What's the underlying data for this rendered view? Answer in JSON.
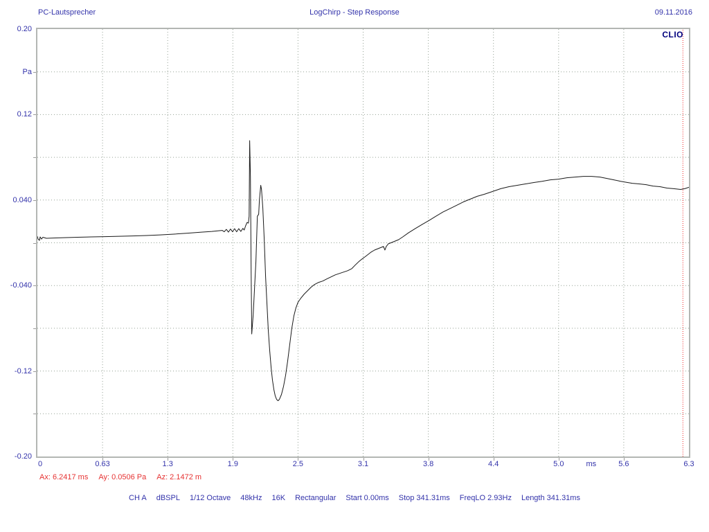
{
  "header": {
    "note": "PC-Lautsprecher",
    "title": "LogChirp - Step Response",
    "date": "09.11.2016"
  },
  "brand": "CLIO",
  "cursor_readout": {
    "ax": "Ax: 6.2417 ms",
    "ay": "Ay: 0.0506 Pa",
    "az": "Az: 2.1472 m"
  },
  "settings_bar": [
    "CH A",
    "dBSPL",
    "1/12 Octave",
    "48kHz",
    "16K",
    "Rectangular",
    "Start 0.00ms",
    "Stop 341.31ms",
    "FreqLO 2.93Hz",
    "Length 341.31ms"
  ],
  "colors": {
    "label_blue": "#3232aa",
    "readout_red": "#e63232",
    "brand_navy": "#00007d",
    "grid": "#93a093",
    "curve": "#181818",
    "frame": "#b3b6b3"
  },
  "chart_data": {
    "type": "line",
    "title": "LogChirp - Step Response",
    "x_unit": "ms",
    "y_unit": "Pa",
    "xlim": [
      0,
      6.3
    ],
    "ylim": [
      -0.2,
      0.2
    ],
    "grid": true,
    "cursor_x_ms": 6.2417,
    "cursor_y_pa": 0.0506,
    "x_ticks": [
      {
        "t": 0.0,
        "label": "0"
      },
      {
        "t": 0.63,
        "label": "0.63"
      },
      {
        "t": 1.26,
        "label": "1.3"
      },
      {
        "t": 1.89,
        "label": "1.9"
      },
      {
        "t": 2.52,
        "label": "2.5"
      },
      {
        "t": 3.15,
        "label": "3.1"
      },
      {
        "t": 3.78,
        "label": "3.8"
      },
      {
        "t": 4.41,
        "label": "4.4"
      },
      {
        "t": 5.04,
        "label": "5.0"
      },
      {
        "t": 5.355,
        "label": "ms",
        "unit": true
      },
      {
        "t": 5.67,
        "label": "5.6"
      },
      {
        "t": 6.3,
        "label": "6.3"
      }
    ],
    "y_ticks": [
      {
        "v": 0.2,
        "label": "0.20"
      },
      {
        "v": 0.16,
        "label": "Pa",
        "unit": true
      },
      {
        "v": 0.12,
        "label": "0.12"
      },
      {
        "v": 0.08,
        "label": ""
      },
      {
        "v": 0.04,
        "label": "0.040"
      },
      {
        "v": 0.0,
        "label": ""
      },
      {
        "v": -0.04,
        "label": "-0.040"
      },
      {
        "v": -0.08,
        "label": ""
      },
      {
        "v": -0.12,
        "label": "-0.12"
      },
      {
        "v": -0.16,
        "label": ""
      },
      {
        "v": -0.2,
        "label": "-0.20"
      }
    ],
    "points": [
      [
        0.0,
        0.0061
      ],
      [
        0.007,
        0.0035
      ],
      [
        0.02,
        0.0023
      ],
      [
        0.027,
        0.0055
      ],
      [
        0.04,
        0.0035
      ],
      [
        0.053,
        0.0052
      ],
      [
        0.087,
        0.0042
      ],
      [
        0.153,
        0.0045
      ],
      [
        0.253,
        0.0048
      ],
      [
        0.387,
        0.0052
      ],
      [
        0.52,
        0.0055
      ],
      [
        0.653,
        0.0058
      ],
      [
        0.787,
        0.0061
      ],
      [
        0.92,
        0.0064
      ],
      [
        1.053,
        0.0068
      ],
      [
        1.187,
        0.0074
      ],
      [
        1.32,
        0.0081
      ],
      [
        1.453,
        0.009
      ],
      [
        1.587,
        0.01
      ],
      [
        1.687,
        0.0106
      ],
      [
        1.753,
        0.0113
      ],
      [
        1.787,
        0.0116
      ],
      [
        1.807,
        0.0103
      ],
      [
        1.827,
        0.0126
      ],
      [
        1.847,
        0.01
      ],
      [
        1.867,
        0.0129
      ],
      [
        1.887,
        0.0103
      ],
      [
        1.907,
        0.0132
      ],
      [
        1.927,
        0.0103
      ],
      [
        1.947,
        0.0132
      ],
      [
        1.967,
        0.0106
      ],
      [
        1.987,
        0.0135
      ],
      [
        2.0,
        0.0119
      ],
      [
        2.013,
        0.0158
      ],
      [
        2.027,
        0.019
      ],
      [
        2.04,
        0.0184
      ],
      [
        2.047,
        0.0248
      ],
      [
        2.053,
        0.0956
      ],
      [
        2.06,
        0.0615
      ],
      [
        2.067,
        -0.0254
      ],
      [
        2.073,
        -0.0853
      ],
      [
        2.087,
        -0.0673
      ],
      [
        2.1,
        -0.0415
      ],
      [
        2.113,
        -0.0177
      ],
      [
        2.127,
        0.0248
      ],
      [
        2.14,
        0.0267
      ],
      [
        2.147,
        0.0403
      ],
      [
        2.16,
        0.0538
      ],
      [
        2.167,
        0.0499
      ],
      [
        2.18,
        0.0325
      ],
      [
        2.193,
        0.0035
      ],
      [
        2.207,
        -0.0319
      ],
      [
        2.22,
        -0.0576
      ],
      [
        2.233,
        -0.0821
      ],
      [
        2.247,
        -0.1014
      ],
      [
        2.26,
        -0.1169
      ],
      [
        2.273,
        -0.1285
      ],
      [
        2.287,
        -0.1375
      ],
      [
        2.3,
        -0.1433
      ],
      [
        2.313,
        -0.1466
      ],
      [
        2.327,
        -0.1478
      ],
      [
        2.34,
        -0.1466
      ],
      [
        2.36,
        -0.142
      ],
      [
        2.38,
        -0.1343
      ],
      [
        2.4,
        -0.124
      ],
      [
        2.42,
        -0.1105
      ],
      [
        2.44,
        -0.095
      ],
      [
        2.46,
        -0.0802
      ],
      [
        2.48,
        -0.0686
      ],
      [
        2.5,
        -0.0609
      ],
      [
        2.52,
        -0.0557
      ],
      [
        2.547,
        -0.0519
      ],
      [
        2.58,
        -0.048
      ],
      [
        2.613,
        -0.0448
      ],
      [
        2.647,
        -0.0415
      ],
      [
        2.68,
        -0.039
      ],
      [
        2.72,
        -0.037
      ],
      [
        2.76,
        -0.0358
      ],
      [
        2.8,
        -0.0338
      ],
      [
        2.84,
        -0.0319
      ],
      [
        2.88,
        -0.03
      ],
      [
        2.92,
        -0.0287
      ],
      [
        2.96,
        -0.0274
      ],
      [
        3.0,
        -0.0261
      ],
      [
        3.04,
        -0.0242
      ],
      [
        3.073,
        -0.0209
      ],
      [
        3.107,
        -0.0177
      ],
      [
        3.14,
        -0.0151
      ],
      [
        3.167,
        -0.0132
      ],
      [
        3.193,
        -0.0113
      ],
      [
        3.227,
        -0.0087
      ],
      [
        3.26,
        -0.0068
      ],
      [
        3.293,
        -0.0055
      ],
      [
        3.327,
        -0.0042
      ],
      [
        3.347,
        -0.0035
      ],
      [
        3.36,
        -0.0068
      ],
      [
        3.373,
        -0.0035
      ],
      [
        3.393,
        -0.001
      ],
      [
        3.427,
        0.0003
      ],
      [
        3.46,
        0.0016
      ],
      [
        3.493,
        0.0029
      ],
      [
        3.533,
        0.0055
      ],
      [
        3.587,
        0.0093
      ],
      [
        3.653,
        0.0132
      ],
      [
        3.72,
        0.0171
      ],
      [
        3.787,
        0.0209
      ],
      [
        3.853,
        0.0248
      ],
      [
        3.92,
        0.0287
      ],
      [
        3.987,
        0.0319
      ],
      [
        4.053,
        0.0351
      ],
      [
        4.12,
        0.0383
      ],
      [
        4.187,
        0.0409
      ],
      [
        4.253,
        0.0435
      ],
      [
        4.32,
        0.0454
      ],
      [
        4.4,
        0.048
      ],
      [
        4.48,
        0.0506
      ],
      [
        4.56,
        0.0525
      ],
      [
        4.64,
        0.0538
      ],
      [
        4.72,
        0.0551
      ],
      [
        4.8,
        0.0564
      ],
      [
        4.88,
        0.0576
      ],
      [
        4.96,
        0.0589
      ],
      [
        5.04,
        0.0596
      ],
      [
        5.12,
        0.0609
      ],
      [
        5.2,
        0.0615
      ],
      [
        5.28,
        0.0622
      ],
      [
        5.36,
        0.0622
      ],
      [
        5.44,
        0.0615
      ],
      [
        5.507,
        0.0602
      ],
      [
        5.573,
        0.0589
      ],
      [
        5.64,
        0.0576
      ],
      [
        5.707,
        0.0564
      ],
      [
        5.753,
        0.0557
      ],
      [
        5.82,
        0.0551
      ],
      [
        5.887,
        0.0544
      ],
      [
        5.953,
        0.0531
      ],
      [
        6.02,
        0.0525
      ],
      [
        6.087,
        0.0512
      ],
      [
        6.153,
        0.0506
      ],
      [
        6.22,
        0.0499
      ],
      [
        6.26,
        0.0506
      ],
      [
        6.3,
        0.0519
      ]
    ]
  }
}
